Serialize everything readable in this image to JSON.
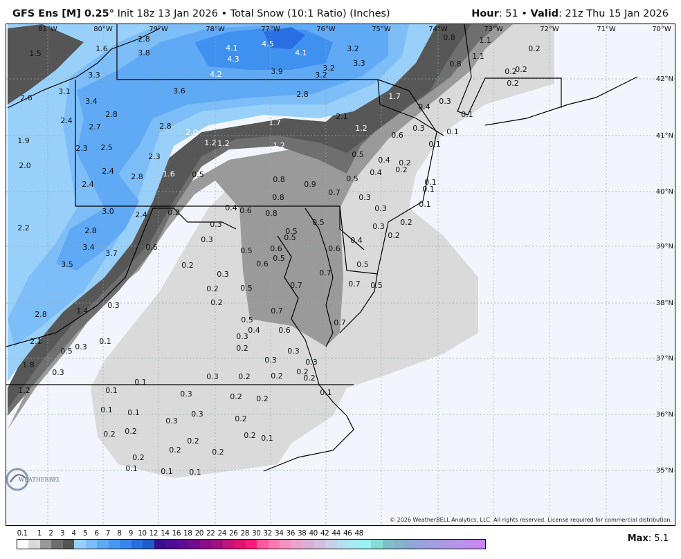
{
  "header": {
    "model": "GFS Ens [M] 0.25",
    "degree": "°",
    "init": " Init 18z 13 Jan 2026",
    "sep": " • ",
    "product": "Total Snow (10:1 Ratio) (Inches)",
    "hour_label": "Hour",
    "hour": ": 51",
    "valid_label": "Valid",
    "valid": ": 21z Thu 15 Jan 2026"
  },
  "longitudes": [
    "81°W",
    "80°W",
    "79°W",
    "78°W",
    "77°W",
    "76°W",
    "75°W",
    "74°W",
    "73°W",
    "72°W",
    "71°W",
    "70°W"
  ],
  "latitudes": [
    "42°N",
    "41°N",
    "40°N",
    "39°N",
    "38°N",
    "37°N",
    "36°N",
    "35°N"
  ],
  "snow_values": [
    "1.5",
    "1.6",
    "2.8",
    "3.8",
    "3.3",
    "4.1",
    "4.5",
    "4.3",
    "4.1",
    "3.2",
    "3.3",
    "4.2",
    "3.9",
    "3.2",
    "3.2",
    "3.1",
    "2.6",
    "3.4",
    "3.6",
    "2.8",
    "1.7",
    "0.4",
    "0.3",
    "0.1",
    "2.8",
    "2.4",
    "2.7",
    "2.8",
    "2.1",
    "1.7",
    "1.2",
    "0.6",
    "0.3",
    "0.1",
    "1.9",
    "2.0",
    "1.2",
    "1.2",
    "1.2",
    "0.1",
    "2.3",
    "2.5",
    "2.3",
    "0.5",
    "0.4",
    "0.2",
    "0.4",
    "0.2",
    "2.0",
    "2.4",
    "1.6",
    "0.5",
    "2.8",
    "0.8",
    "0.9",
    "0.5",
    "0.1",
    "0.1",
    "2.4",
    "0.7",
    "0.3",
    "0.1",
    "3.0",
    "2.4",
    "0.2",
    "0.4",
    "0.6",
    "0.8",
    "0.8",
    "0.3",
    "2.2",
    "0.3",
    "0.5",
    "0.3",
    "0.2",
    "2.8",
    "0.3",
    "0.5",
    "0.5",
    "0.2",
    "0.4",
    "3.4",
    "0.6",
    "3.7",
    "0.5",
    "0.6",
    "0.5",
    "0.6",
    "3.5",
    "0.2",
    "0.3",
    "0.6",
    "0.5",
    "0.7",
    "0.2",
    "0.5",
    "0.7",
    "0.7",
    "0.5",
    "0.2",
    "0.3",
    "0.7",
    "1.4",
    "2.8",
    "0.5",
    "0.4",
    "0.6",
    "0.7",
    "0.3",
    "2.1",
    "0.1",
    "0.3",
    "0.5",
    "0.2",
    "0.3",
    "0.3",
    "0.3",
    "1.8",
    "0.3",
    "0.2",
    "0.3",
    "0.2",
    "0.2",
    "0.2",
    "0.1",
    "0.1",
    "1.2",
    "0.3",
    "0.2",
    "0.2",
    "0.1",
    "0.1",
    "0.1",
    "0.3",
    "0.3",
    "0.2",
    "0.2",
    "0.2",
    "0.2",
    "0.1",
    "0.2",
    "0.2",
    "0.2",
    "0.2",
    "0.1",
    "0.1",
    "0.1",
    "0.8",
    "1.1",
    "1.1",
    "0.8",
    "0.2",
    "0.2",
    "0.2",
    "0.2"
  ],
  "colorbar": {
    "ticks": [
      "0.1",
      "1",
      "2",
      "3",
      "4",
      "5",
      "6",
      "7",
      "8",
      "9",
      "10",
      "12",
      "14",
      "16",
      "18",
      "20",
      "22",
      "24",
      "26",
      "28",
      "30",
      "32",
      "34",
      "36",
      "38",
      "40",
      "42",
      "44",
      "46",
      "48"
    ],
    "colors": [
      "#ffffff",
      "#d9d9d9",
      "#999999",
      "#6e6e6e",
      "#555555",
      "#99d0fa",
      "#7dbdf8",
      "#5fa9f5",
      "#4798f1",
      "#3886ec",
      "#2a6ee3",
      "#1f5ccc",
      "#3a0e8c",
      "#4c0c94",
      "#5e0c96",
      "#720c8e",
      "#8a0c86",
      "#a2107e",
      "#c01478",
      "#e01470",
      "#ff1a7a",
      "#ff5a9c",
      "#ff78b0",
      "#f492c0",
      "#eca4cc",
      "#dcb0d6",
      "#d2bfe0",
      "#c6d2ea",
      "#b6e0ef",
      "#a8eaf2",
      "#98f4f2",
      "#88dcd6",
      "#7ec0c8",
      "#84b4cc",
      "#8ea8d4",
      "#9aa2dc",
      "#a49ee0",
      "#ae9ae4",
      "#b696e8",
      "#c08eee",
      "#c886f2"
    ],
    "max_label": "Max",
    "max_value": ": 5.1"
  },
  "copyright": "© 2026 WeatherBELL Analytics, LLC. All rights reserved. License required for commercial distribution.",
  "logo_text": "WeatherBELL"
}
